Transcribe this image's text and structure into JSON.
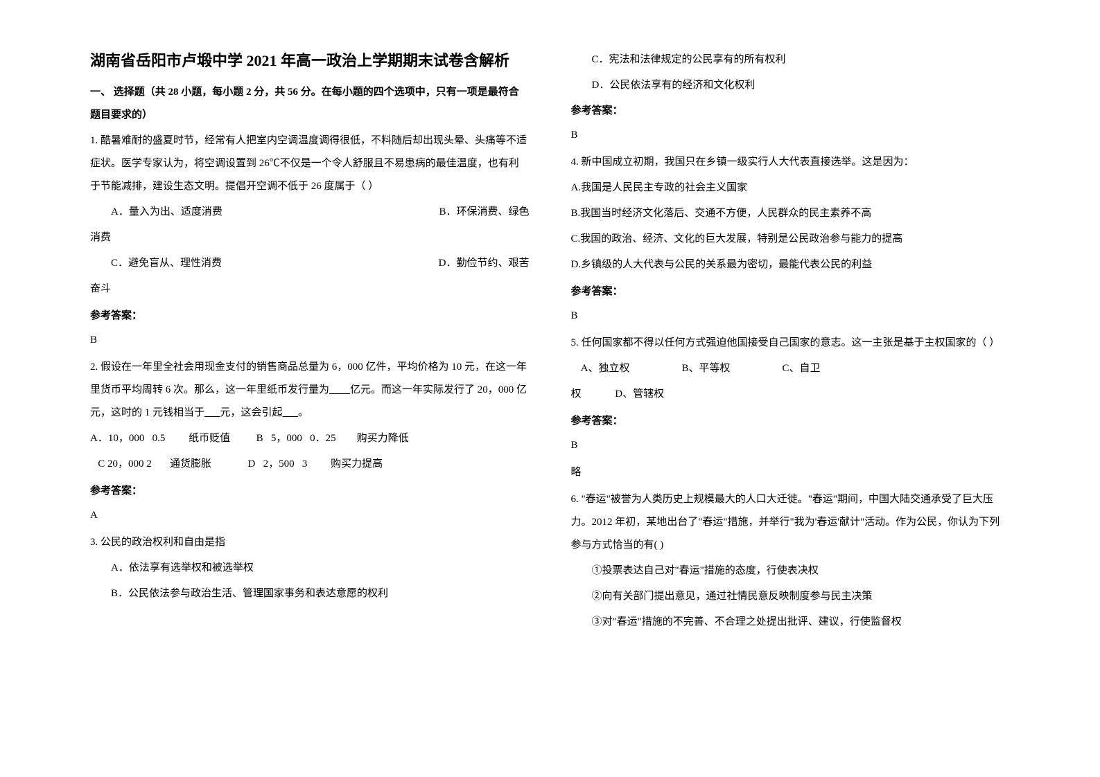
{
  "left": {
    "title": "湖南省岳阳市卢塅中学 2021 年高一政治上学期期末试卷含解析",
    "section_header": "一、 选择题（共 28 小题，每小题 2 分，共 56 分。在每小题的四个选项中，只有一项是最符合题目要求的）",
    "q1_text": "1. 酷暑难耐的盛夏时节，经常有人把室内空调温度调得很低，不料随后却出现头晕、头痛等不适症状。医学专家认为，将空调设置到 26℃不仅是一个令人舒服且不易患病的最佳温度，也有利于节能减排，建设生态文明。提倡开空调不低于 26 度属于（   ）",
    "q1_optA": "A．量入为出、适度消费",
    "q1_optB_prefix": "B．环保消费、绿色",
    "q1_optB_cont": "消费",
    "q1_optC": "C．避免盲从、理性消费",
    "q1_optD_prefix": "D．勤俭节约、艰苦",
    "q1_optD_cont": "奋斗",
    "ans_label": "参考答案：",
    "q1_ans": "B",
    "q2_text_p1": "2. 假设在一年里全社会用现金支付的销售商品总量为 6，000 亿件，平均价格为 10 元，在这一年里货币平均周转 6 次。那么，这一年里纸币发行量为",
    "q2_blank1": "        ",
    "q2_text_p2": "亿元。而这一年实际发行了 20，000 亿元，这时的 1 元钱相当于",
    "q2_blank2": "      ",
    "q2_text_p3": "元，这会引起",
    "q2_blank3": "      ",
    "q2_text_p4": "。",
    "q2_row1": "A．10，000   0.5         纸币贬值          B   5，000   0．25        购买力降低",
    "q2_row2": "   C 20，000 2       通货膨胀              D   2，500   3         购买力提高",
    "q2_ans": "A",
    "q3_text": "3. 公民的政治权利和自由是指",
    "q3_optA": "A．依法享有选举权和被选举权",
    "q3_optB": "B．公民依法参与政治生活、管理国家事务和表达意愿的权利"
  },
  "right": {
    "q3_optC": "C．宪法和法律规定的公民享有的所有权利",
    "q3_optD": "D．公民依法享有的经济和文化权利",
    "ans_label": "参考答案：",
    "q3_ans": "B",
    "q4_text": "4. 新中国成立初期，我国只在乡镇一级实行人大代表直接选举。这是因为：",
    "q4_optA": "A.我国是人民民主专政的社会主义国家",
    "q4_optB": "B.我国当时经济文化落后、交通不方便，人民群众的民主素养不高",
    "q4_optC": "C.我国的政治、经济、文化的巨大发展，特别是公民政治参与能力的提高",
    "q4_optD": "D.乡镇级的人大代表与公民的关系最为密切，最能代表公民的利益",
    "q4_ans": "B",
    "q5_text": "5. 任何国家都不得以任何方式强迫他国接受自己国家的意志。这一主张是基于主权国家的（     ）",
    "q5_row1": "    A、独立权                    B、平等权                    C、自卫",
    "q5_row2": "权             D、管辖权",
    "q5_ans": "B",
    "q5_note": "略",
    "q6_text": "6. \"春运\"被誉为人类历史上规模最大的人口大迁徙。\"春运\"期间，中国大陆交通承受了巨大压力。2012 年初，某地出台了\"春运\"措施，并举行\"我为'春运'献计\"活动。作为公民，你认为下列参与方式恰当的有(     )",
    "q6_opt1": "①投票表达自己对\"春运\"措施的态度，行使表决权",
    "q6_opt2": "②向有关部门提出意见，通过社情民意反映制度参与民主决策",
    "q6_opt3": "③对\"春运\"措施的不完善、不合理之处提出批评、建议，行使监督权"
  },
  "style": {
    "background_color": "#ffffff",
    "text_color": "#000000",
    "title_fontsize": 22,
    "body_fontsize": 15,
    "line_height": 2.2,
    "font_family": "SimSun"
  }
}
